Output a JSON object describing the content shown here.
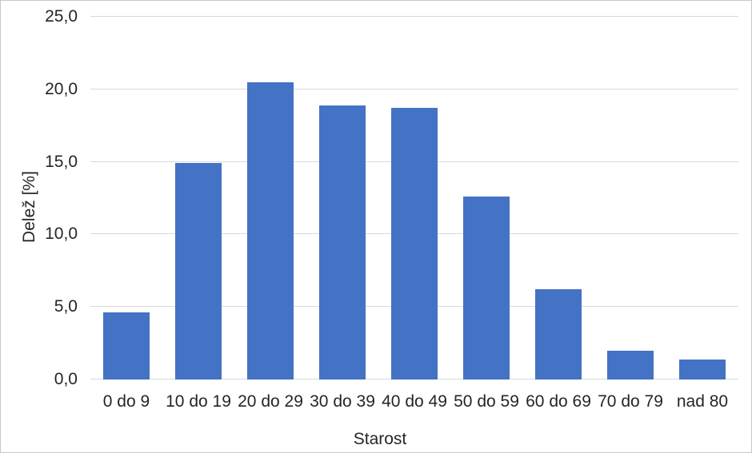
{
  "chart_data": {
    "type": "bar",
    "title": "",
    "categories": [
      "0 do 9",
      "10 do 19",
      "20 do 29",
      "30 do 39",
      "40 do 49",
      "50 do 59",
      "60 do 69",
      "70 do 79",
      "nad 80"
    ],
    "values": [
      4.6,
      14.9,
      20.5,
      18.9,
      18.7,
      12.6,
      6.2,
      2.0,
      1.4
    ],
    "xlabel": "Starost",
    "ylabel": "Delež [%]",
    "ylim": [
      0,
      25
    ],
    "ytick_step": 5,
    "ytick_labels": [
      "0,0",
      "5,0",
      "10,0",
      "15,0",
      "20,0",
      "25,0"
    ],
    "grid": true,
    "legend_position": "none",
    "colors": {
      "bar": "#4472C4",
      "gridline": "#D9D9D9",
      "text": "#262626",
      "background": "#ffffff",
      "frame_border": "#c9c9c9"
    }
  }
}
